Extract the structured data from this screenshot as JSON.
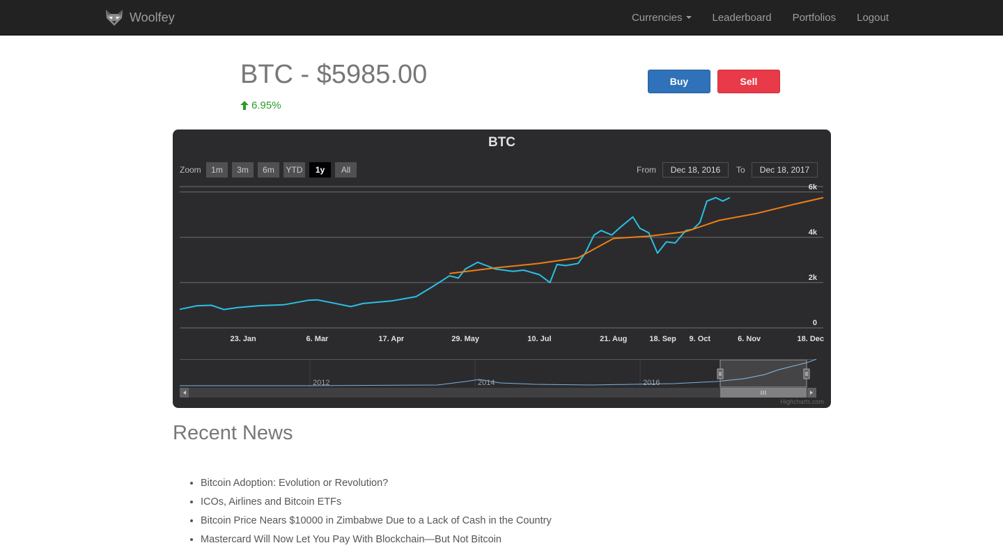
{
  "nav": {
    "brand": "Woolfey",
    "items": [
      {
        "label": "Currencies",
        "dropdown": true
      },
      {
        "label": "Leaderboard"
      },
      {
        "label": "Portfolios"
      },
      {
        "label": "Logout"
      }
    ]
  },
  "header": {
    "title": "BTC - $5985.00",
    "change": "6.95%",
    "change_color": "#2a9b2a",
    "buy_label": "Buy",
    "sell_label": "Sell"
  },
  "chart_panel": {
    "zoom_label": "Zoom",
    "zoom_buttons": [
      "1m",
      "3m",
      "6m",
      "YTD",
      "1y",
      "All"
    ],
    "active_zoom": "1y",
    "from_label": "From",
    "from_value": "Dec 18, 2016",
    "to_label": "To",
    "to_value": "Dec 18, 2017",
    "credit": "Highcharts.com"
  },
  "chart_data": {
    "type": "line",
    "title": "BTC",
    "x_tick_labels": [
      "23. Jan",
      "6. Mar",
      "17. Apr",
      "29. May",
      "10. Jul",
      "21. Aug",
      "18. Sep",
      "9. Oct",
      "6. Nov",
      "18. Dec"
    ],
    "y_tick_labels": [
      "0",
      "2k",
      "4k",
      "6k"
    ],
    "ylim": [
      0,
      6000
    ],
    "grid": true,
    "colors": {
      "price": "#2bc0e4",
      "average": "#f07f14"
    },
    "series": [
      {
        "key": "price",
        "x": [
          "2016-12-18",
          "2016-12-28",
          "2017-01-05",
          "2017-01-12",
          "2017-01-20",
          "2017-02-01",
          "2017-02-15",
          "2017-03-01",
          "2017-03-06",
          "2017-03-15",
          "2017-03-25",
          "2017-04-01",
          "2017-04-17",
          "2017-05-01",
          "2017-05-10",
          "2017-05-20",
          "2017-05-25",
          "2017-05-29",
          "2017-06-05",
          "2017-06-10",
          "2017-06-15",
          "2017-06-25",
          "2017-07-01",
          "2017-07-10",
          "2017-07-16",
          "2017-07-20",
          "2017-07-25",
          "2017-08-01",
          "2017-08-05",
          "2017-08-10",
          "2017-08-14",
          "2017-08-20",
          "2017-08-25",
          "2017-09-01",
          "2017-09-05",
          "2017-09-10",
          "2017-09-15",
          "2017-09-20",
          "2017-09-25",
          "2017-10-01",
          "2017-10-05",
          "2017-10-09",
          "2017-10-13",
          "2017-10-18",
          "2017-10-22",
          "2017-10-26"
        ],
        "y": [
          820,
          980,
          1000,
          810,
          900,
          980,
          1020,
          1220,
          1240,
          1100,
          940,
          1080,
          1190,
          1380,
          1800,
          2300,
          2200,
          2600,
          2900,
          2750,
          2600,
          2500,
          2550,
          2350,
          2000,
          2800,
          2750,
          2850,
          3300,
          4100,
          4300,
          4100,
          4450,
          4900,
          4400,
          4200,
          3300,
          3800,
          3750,
          4300,
          4350,
          4650,
          5600,
          5750,
          5600,
          5750
        ]
      },
      {
        "key": "average",
        "x": [
          "2017-05-20",
          "2017-06-15",
          "2017-07-10",
          "2017-08-01",
          "2017-08-21",
          "2017-09-10",
          "2017-10-01",
          "2017-10-20",
          "2017-11-10",
          "2017-12-01",
          "2017-12-18"
        ],
        "y": [
          2400,
          2650,
          2850,
          3100,
          3950,
          4050,
          4250,
          4750,
          5050,
          5450,
          5750
        ]
      }
    ],
    "navigator": {
      "x_labels": [
        "2012",
        "2014",
        "2016"
      ]
    }
  },
  "news": {
    "title": "Recent News",
    "items": [
      "Bitcoin Adoption: Evolution or Revolution?",
      "ICOs, Airlines and Bitcoin ETFs",
      "Bitcoin Price Nears $10000 in Zimbabwe Due to a Lack of Cash in the Country",
      "Mastercard Will Now Let You Pay With Blockchain—But Not Bitcoin"
    ]
  }
}
